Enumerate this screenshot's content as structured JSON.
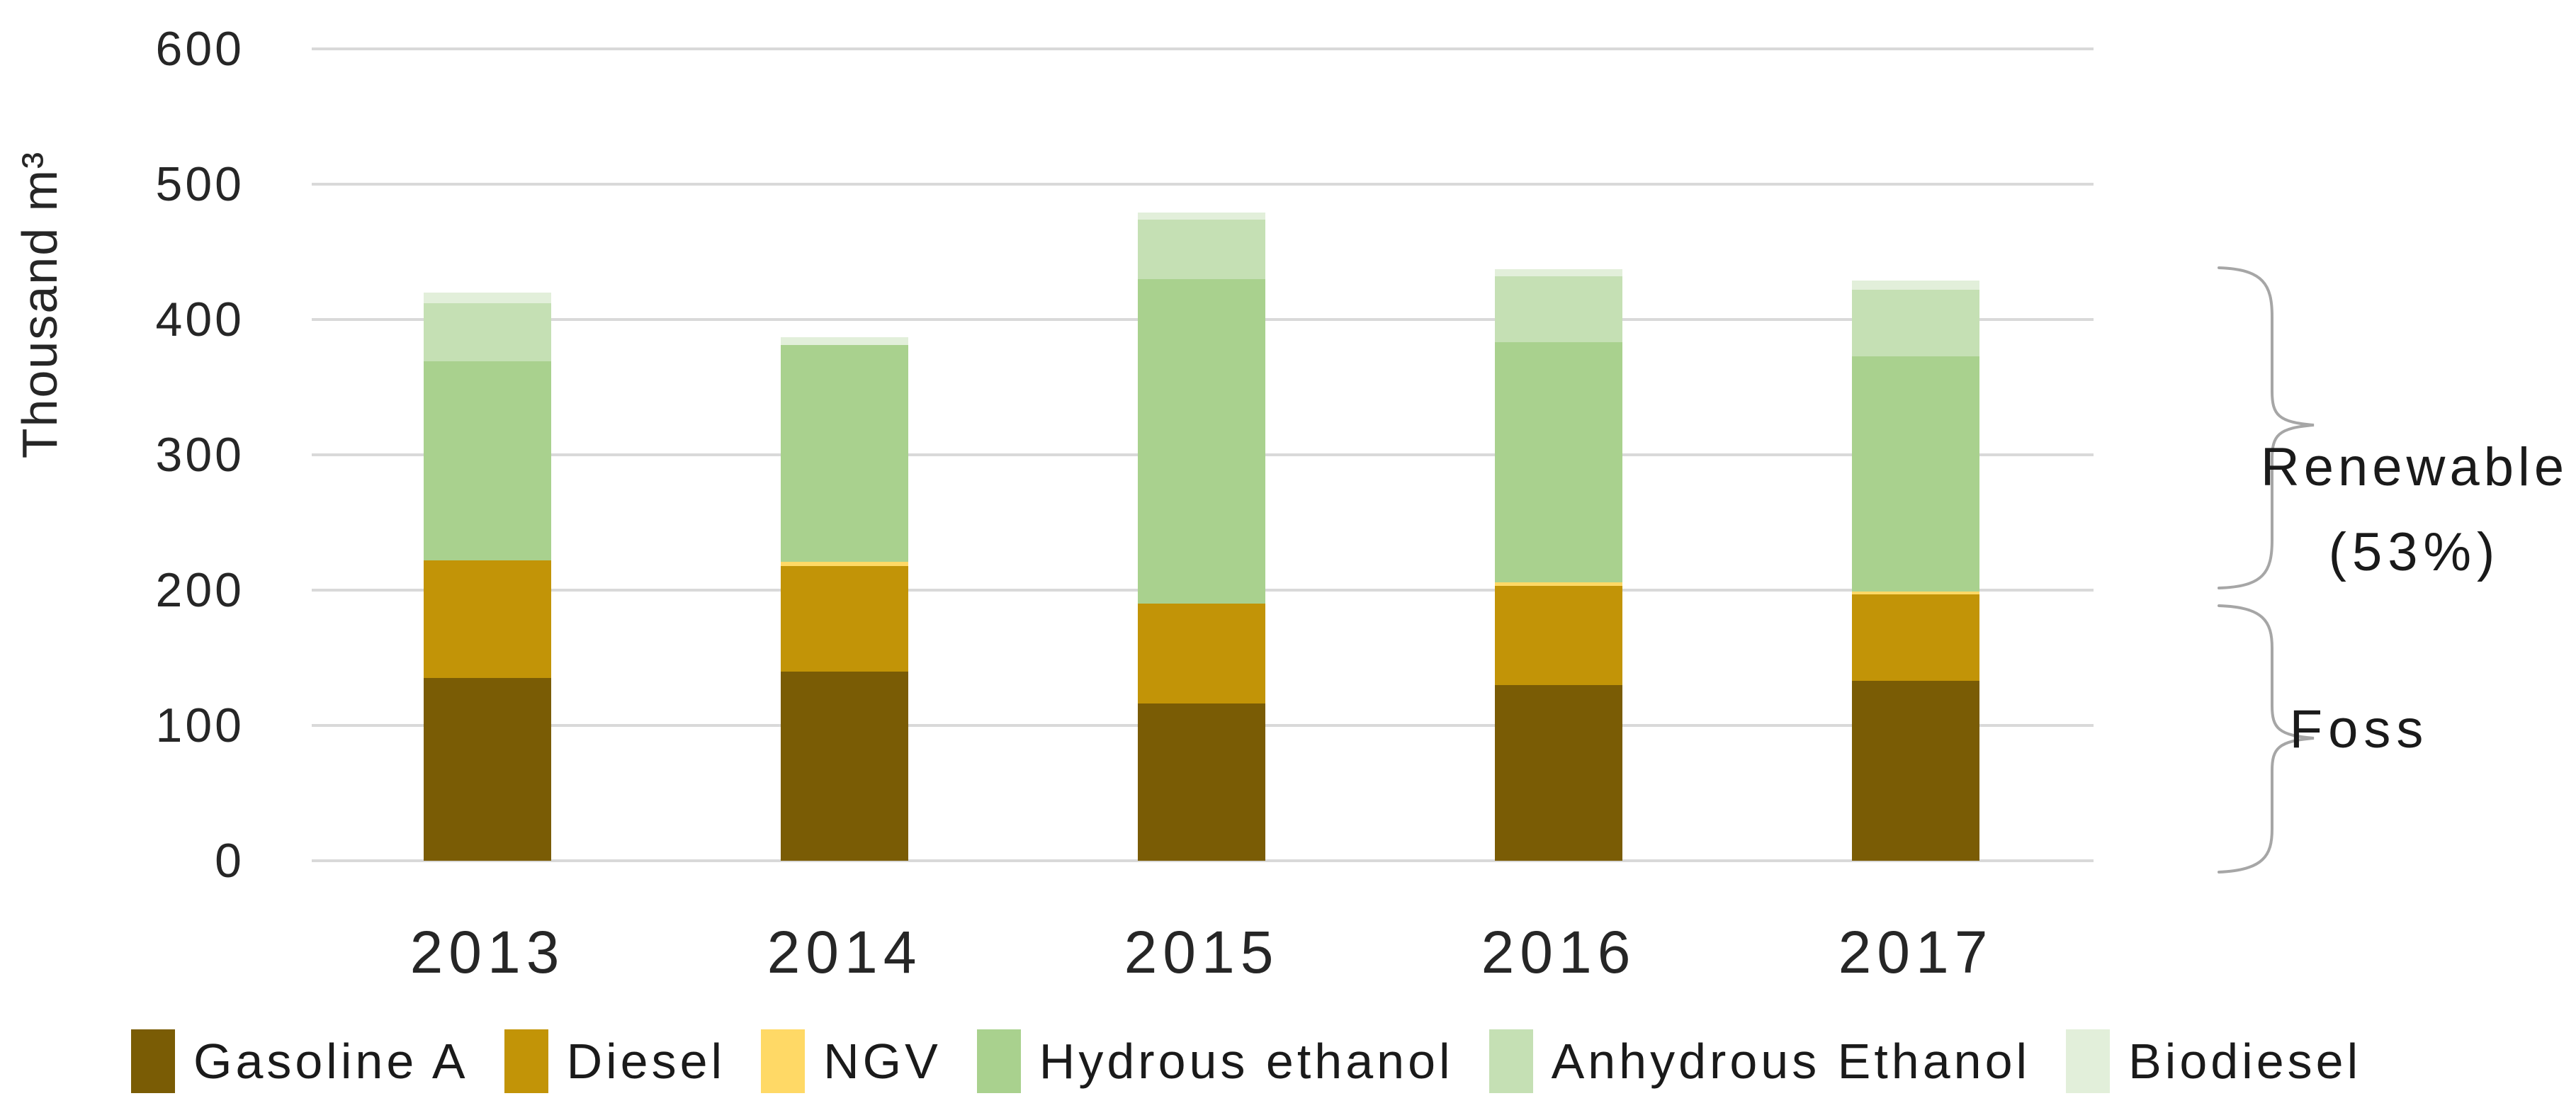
{
  "chart_data": {
    "type": "bar",
    "stacked": true,
    "ylabel": "Thousand m³",
    "ylim": [
      0,
      600
    ],
    "yticks": [
      600,
      500,
      400,
      300,
      200,
      100,
      0
    ],
    "grid": true,
    "legend_position": "bottom",
    "categories": [
      "2013",
      "2014",
      "2015",
      "2016",
      "2017"
    ],
    "series": [
      {
        "name": "Gasoline A",
        "color": "#7A5C05",
        "values": [
          135,
          140,
          116,
          130,
          133
        ]
      },
      {
        "name": "Diesel",
        "color": "#C29407",
        "values": [
          87,
          78,
          74,
          73,
          64
        ]
      },
      {
        "name": "NGV",
        "color": "#FFD966",
        "values": [
          0,
          3,
          0,
          3,
          2
        ]
      },
      {
        "name": "Hydrous ethanol",
        "color": "#A9D18E",
        "values": [
          147,
          160,
          240,
          177,
          174
        ]
      },
      {
        "name": "Anhydrous Ethanol",
        "color": "#C5E0B4",
        "values": [
          43,
          0,
          44,
          49,
          49
        ]
      },
      {
        "name": "Biodiesel",
        "color": "#E2EFDA",
        "values": [
          8,
          6,
          5,
          5,
          7
        ]
      }
    ]
  },
  "annotations": {
    "renewable_line1": "Renewable",
    "renewable_line2": "(53%)",
    "fossil_label": "Foss"
  },
  "colors": {
    "gridline": "#D9D9D9",
    "brace": "#A6A6A6",
    "text": "#262626"
  }
}
